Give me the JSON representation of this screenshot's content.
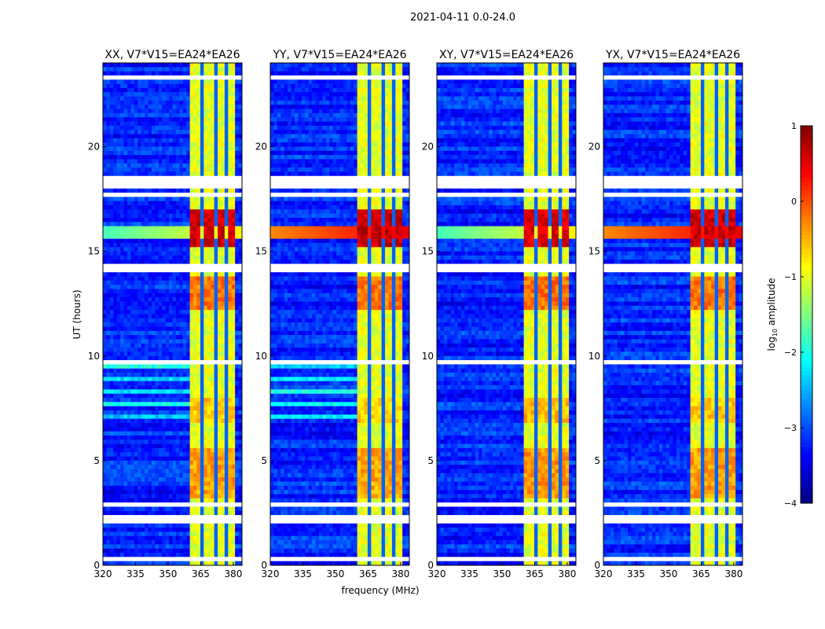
{
  "chart_data": {
    "type": "heatmap",
    "title": "2021-04-11 0.0-24.0",
    "xlabel": "frequency (MHz)",
    "ylabel": "UT (hours)",
    "xlim": [
      320,
      384
    ],
    "ylim": [
      0,
      24
    ],
    "xticks": [
      "320",
      "335",
      "350",
      "365",
      "380"
    ],
    "xtick_values": [
      320,
      335,
      350,
      365,
      380
    ],
    "yticks": [
      "0",
      "5",
      "10",
      "15",
      "20"
    ],
    "ytick_values": [
      0,
      5,
      10,
      15,
      20
    ],
    "panels": [
      {
        "title": "XX, V7*V15=EA24*EA26",
        "rfi_gain": 1.0,
        "cyan_rows": true
      },
      {
        "title": "YY, V7*V15=EA24*EA26",
        "rfi_gain": 1.1,
        "cyan_rows": true
      },
      {
        "title": "XY, V7*V15=EA24*EA26",
        "rfi_gain": 0.9,
        "cyan_rows": false
      },
      {
        "title": "YX, V7*V15=EA24*EA26",
        "rfi_gain": 1.0,
        "cyan_rows": false
      }
    ],
    "colorbar": {
      "label": "log10 amplitude",
      "min": -4,
      "max": 1,
      "ticks": [
        "1",
        "0",
        "−1",
        "−2",
        "−3",
        "−4"
      ],
      "tick_values": [
        1,
        0,
        -1,
        -2,
        -3,
        -4
      ],
      "colormap": "jet"
    },
    "background_level": -3.2,
    "band_mhz": [
      360.5,
      380.5
    ],
    "band_level": -1.0,
    "band_gaps_mhz": [
      366,
      371.5,
      376.5
    ],
    "rfi_intervals": [
      {
        "hours": [
          15.2,
          16.9
        ],
        "level": 0.6
      },
      {
        "hours": [
          12.3,
          13.8
        ],
        "level": -0.2
      },
      {
        "hours": [
          3.2,
          5.5
        ],
        "level": -0.4
      },
      {
        "hours": [
          6.8,
          8.0
        ],
        "level": -0.6
      }
    ],
    "broadband_rfi_hours": [
      15.7,
      16.2
    ],
    "flagged_hours": [
      [
        0.3,
        0.42
      ],
      [
        2.0,
        2.35
      ],
      [
        2.8,
        2.95
      ],
      [
        14.0,
        14.3
      ],
      [
        17.7,
        17.85
      ],
      [
        18.05,
        18.15
      ],
      [
        18.3,
        18.6
      ],
      [
        9.6,
        9.7
      ],
      [
        23.2,
        23.3
      ],
      [
        22.2,
        22.25
      ]
    ]
  }
}
